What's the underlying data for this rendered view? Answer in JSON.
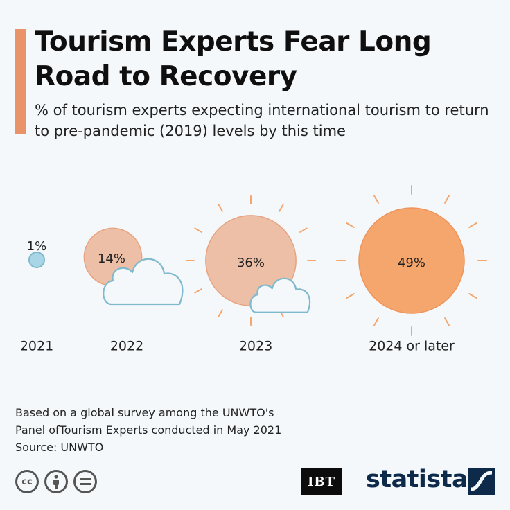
{
  "header": {
    "title": "Tourism Experts Fear Long Road to Recovery",
    "subtitle": "% of tourism experts expecting international tourism to return to pre-pandemic (2019) levels by this time"
  },
  "chart_data": {
    "type": "bubble",
    "title": "Tourism Experts Fear Long Road to Recovery",
    "subtitle": "% of tourism experts expecting international tourism to return to pre-pandemic (2019) levels by this time",
    "categories": [
      "2021",
      "2022",
      "2023",
      "2024 or later"
    ],
    "values": [
      1,
      14,
      36,
      49
    ],
    "value_labels": [
      "1%",
      "14%",
      "36%",
      "49%"
    ],
    "unit": "%",
    "icons": [
      "small-blue-circle",
      "sun-behind-cloud",
      "sun-with-small-cloud",
      "full-sun"
    ]
  },
  "colors": {
    "accent": "#e8936a",
    "sun_light": "#ecbfa6",
    "sun_full": "#f4a66c",
    "cloud_stroke": "#7fb9cc",
    "dot": "#a9d6e6"
  },
  "footer": {
    "note_line1": "Based on a global survey among the UNWTO's",
    "note_line2": "Panel ofTourism Experts conducted in May 2021",
    "source": "Source: UNWTO",
    "publisher_logo": "IBT",
    "brand": "statista",
    "license_icons": [
      "cc",
      "by",
      "nd"
    ]
  }
}
